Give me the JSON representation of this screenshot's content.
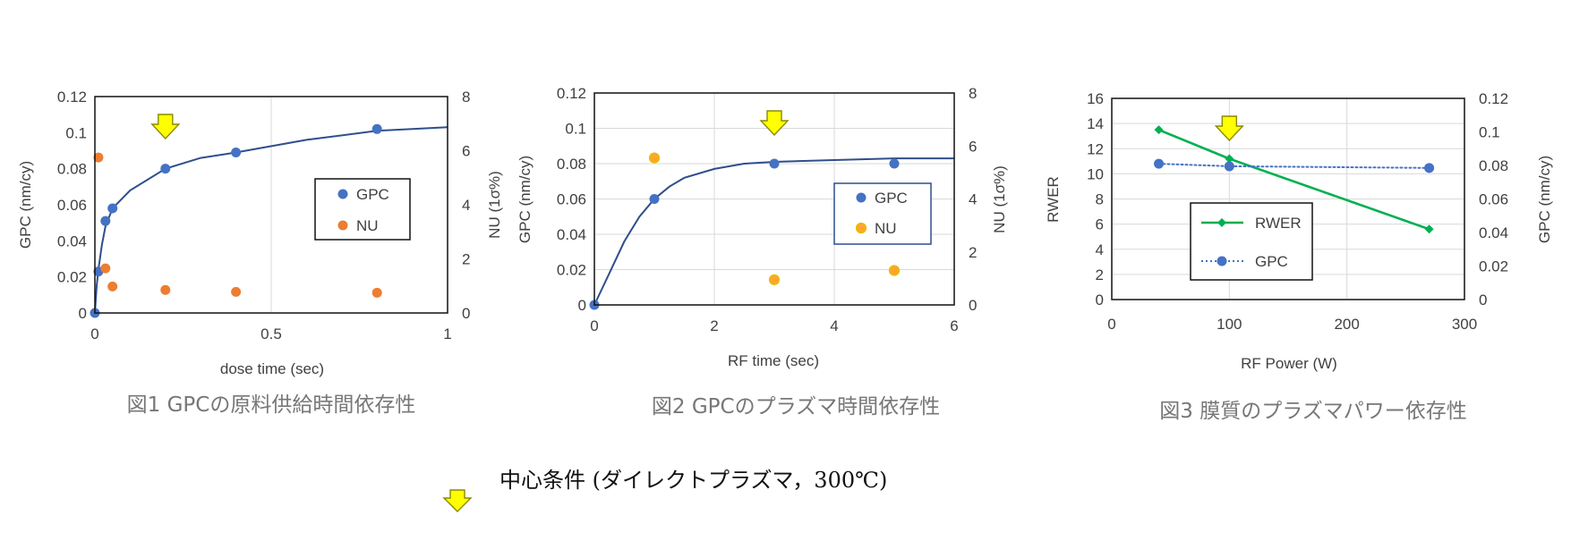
{
  "colors": {
    "gpc_marker": "#4472C4",
    "fit_curve": "#2F4E8C",
    "nu_marker": "#ED7D31",
    "nu_marker_fig2": "#FFA62B",
    "rwer_line": "#00B050",
    "arrow_fill": "#FFFF00",
    "arrow_stroke": "#8A8A00",
    "grid": "#D9D9D9"
  },
  "chart_data": [
    {
      "type": "scatter",
      "caption": "図1 GPCの原料供給時間依存性",
      "xlabel": "dose time (sec)",
      "ylabel": "GPC (nm/cy)",
      "y2label": "NU (1σ%)",
      "xlim": [
        0,
        1
      ],
      "ylim": [
        0,
        0.12
      ],
      "y2lim": [
        0,
        8
      ],
      "xticks": [
        "0",
        "0.5",
        "1"
      ],
      "yticks": [
        "0",
        "0.02",
        "0.04",
        "0.06",
        "0.08",
        "0.1",
        "0.12"
      ],
      "y2ticks": [
        "0",
        "2",
        "4",
        "6",
        "8"
      ],
      "grid": "vertical",
      "legend_position": "right",
      "center_condition_x": 0.2,
      "series": [
        {
          "name": "GPC",
          "axis": "left",
          "points": [
            [
              0,
              0
            ],
            [
              0.01,
              0.023
            ],
            [
              0.03,
              0.051
            ],
            [
              0.05,
              0.058
            ],
            [
              0.2,
              0.08
            ],
            [
              0.4,
              0.089
            ],
            [
              0.8,
              0.102
            ]
          ]
        },
        {
          "name": "NU",
          "axis": "right",
          "points": [
            [
              0.01,
              5.75
            ],
            [
              0.03,
              1.65
            ],
            [
              0.05,
              0.98
            ],
            [
              0.2,
              0.85
            ],
            [
              0.4,
              0.78
            ],
            [
              0.8,
              0.75
            ]
          ]
        },
        {
          "axis": "left",
          "style": "fit-line",
          "points": [
            [
              0,
              0
            ],
            [
              0.005,
              0.015
            ],
            [
              0.01,
              0.024
            ],
            [
              0.02,
              0.038
            ],
            [
              0.03,
              0.048
            ],
            [
              0.05,
              0.058
            ],
            [
              0.1,
              0.068
            ],
            [
              0.2,
              0.08
            ],
            [
              0.3,
              0.086
            ],
            [
              0.4,
              0.089
            ],
            [
              0.6,
              0.096
            ],
            [
              0.8,
              0.101
            ],
            [
              1.0,
              0.103
            ]
          ]
        }
      ]
    },
    {
      "type": "scatter",
      "caption": "図2 GPCのプラズマ時間依存性",
      "xlabel": "RF time (sec)",
      "ylabel": "GPC (nm/cy)",
      "y2label": "NU (1σ%)",
      "xlim": [
        0,
        6
      ],
      "ylim": [
        0,
        0.12
      ],
      "y2lim": [
        0,
        8
      ],
      "xticks": [
        "0",
        "2",
        "4",
        "6"
      ],
      "yticks": [
        "0",
        "0.02",
        "0.04",
        "0.06",
        "0.08",
        "0.1",
        "0.12"
      ],
      "y2ticks": [
        "0",
        "2",
        "4",
        "6",
        "8"
      ],
      "grid": "both",
      "legend_position": "right",
      "center_condition_x": 3,
      "series": [
        {
          "name": "GPC",
          "axis": "left",
          "points": [
            [
              0,
              0
            ],
            [
              1,
              0.06
            ],
            [
              3,
              0.08
            ],
            [
              5,
              0.08
            ]
          ]
        },
        {
          "name": "NU",
          "axis": "right",
          "points": [
            [
              1,
              5.55
            ],
            [
              3,
              0.95
            ],
            [
              5,
              1.3
            ]
          ]
        },
        {
          "axis": "left",
          "style": "fit-line",
          "points": [
            [
              0,
              0
            ],
            [
              0.25,
              0.018
            ],
            [
              0.5,
              0.036
            ],
            [
              0.75,
              0.05
            ],
            [
              1,
              0.06
            ],
            [
              1.25,
              0.067
            ],
            [
              1.5,
              0.072
            ],
            [
              2,
              0.077
            ],
            [
              2.5,
              0.08
            ],
            [
              3,
              0.081
            ],
            [
              4,
              0.082
            ],
            [
              5,
              0.083
            ],
            [
              6,
              0.083
            ]
          ]
        }
      ]
    },
    {
      "type": "line",
      "caption": "図3 膜質のプラズマパワー依存性",
      "xlabel": "RF Power (W)",
      "ylabel": "RWER",
      "y2label": "GPC (nm/cy)",
      "xlim": [
        0,
        300
      ],
      "ylim": [
        0,
        16
      ],
      "y2lim": [
        0,
        0.12
      ],
      "xticks": [
        "0",
        "100",
        "200",
        "300"
      ],
      "yticks": [
        "0",
        "2",
        "4",
        "6",
        "8",
        "10",
        "12",
        "14",
        "16"
      ],
      "y2ticks": [
        "0",
        "0.02",
        "0.04",
        "0.06",
        "0.08",
        "0.1",
        "0.12"
      ],
      "grid": "both",
      "legend_position": "left",
      "center_condition_x": 100,
      "series": [
        {
          "name": "RWER",
          "axis": "left",
          "style": "solid",
          "points": [
            [
              40,
              13.5
            ],
            [
              100,
              11.2
            ],
            [
              270,
              5.6
            ]
          ]
        },
        {
          "name": "GPC",
          "axis": "right",
          "style": "dotted",
          "points": [
            [
              40,
              0.081
            ],
            [
              100,
              0.0795
            ],
            [
              270,
              0.0785
            ]
          ]
        }
      ]
    }
  ],
  "footer": {
    "note": "中心条件 (ダイレクトプラズマ，300℃)"
  }
}
